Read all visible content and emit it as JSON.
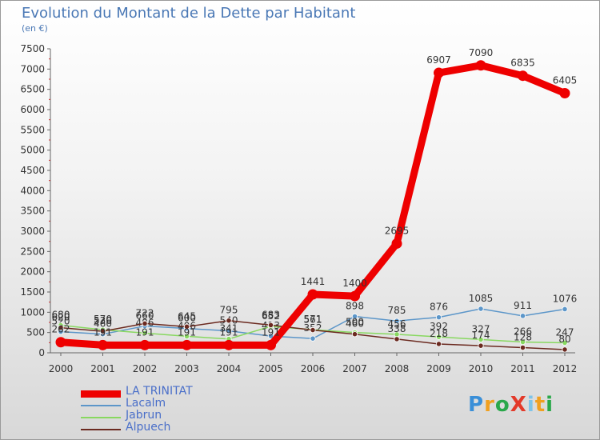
{
  "title": "Evolution du Montant de la Dette par Habitant",
  "unit_label": "(en €)",
  "logo": {
    "text": "ProXiti",
    "letters": [
      "P",
      "r",
      "o",
      "X",
      "i",
      "t",
      "i"
    ],
    "colors": [
      "#3a8fd8",
      "#f0a020",
      "#2aa84a",
      "#e33a2a",
      "#7ec4e8",
      "#f0a020",
      "#2aa84a"
    ]
  },
  "chart_data": {
    "type": "line",
    "title": "Evolution du Montant de la Dette par Habitant",
    "xlabel": "",
    "ylabel": "(en €)",
    "categories": [
      "2000",
      "2001",
      "2002",
      "2003",
      "2004",
      "2005",
      "2006",
      "2007",
      "2008",
      "2009",
      "2010",
      "2011",
      "2012"
    ],
    "ylim": [
      0,
      7500
    ],
    "yticks": [
      0,
      500,
      1000,
      1500,
      2000,
      2500,
      3000,
      3500,
      4000,
      4500,
      5000,
      5500,
      6000,
      6500,
      7000,
      7500
    ],
    "grid": false,
    "legend_position": "bottom-left",
    "series": [
      {
        "name": "LA TRINITAT",
        "color": "#ee0000",
        "width": 9,
        "values": [
          262,
          191,
          191,
          191,
          191,
          191,
          1441,
          1400,
          2695,
          6907,
          7090,
          6835,
          6405
        ],
        "labels": [
          "262",
          "191",
          "191",
          "191",
          "191",
          "191",
          "1441",
          "1400",
          "2695",
          "6907",
          "7090",
          "6835",
          "6405"
        ]
      },
      {
        "name": "Lacalm",
        "color": "#5c96c9",
        "width": 1.5,
        "values": [
          520,
          460,
          660,
          600,
          540,
          413,
          352,
          898,
          785,
          876,
          1085,
          911,
          1076
        ],
        "labels": [
          "520",
          "460",
          "660",
          "600",
          "540",
          "413",
          "352",
          "898",
          "785",
          "876",
          "1085",
          "911",
          "1076"
        ]
      },
      {
        "name": "Jabrun",
        "color": "#88d860",
        "width": 1.5,
        "values": [
          680,
          570,
          486,
          406,
          341,
          652,
          571,
          500,
          456,
          392,
          327,
          266,
          247
        ],
        "labels": [
          "680",
          "570",
          "486",
          "406",
          "341",
          "652",
          "571",
          "500",
          "456",
          "392",
          "327",
          "266",
          "247"
        ]
      },
      {
        "name": "Alpuech",
        "color": "#6b2a20",
        "width": 1.5,
        "values": [
          620,
          530,
          722,
          645,
          795,
          683,
          561,
          460,
          338,
          218,
          174,
          128,
          80
        ],
        "labels": [
          "620",
          "530",
          "722",
          "645",
          "795",
          "683",
          "561",
          "460",
          "338",
          "218",
          "174",
          "128",
          "80"
        ]
      }
    ]
  }
}
